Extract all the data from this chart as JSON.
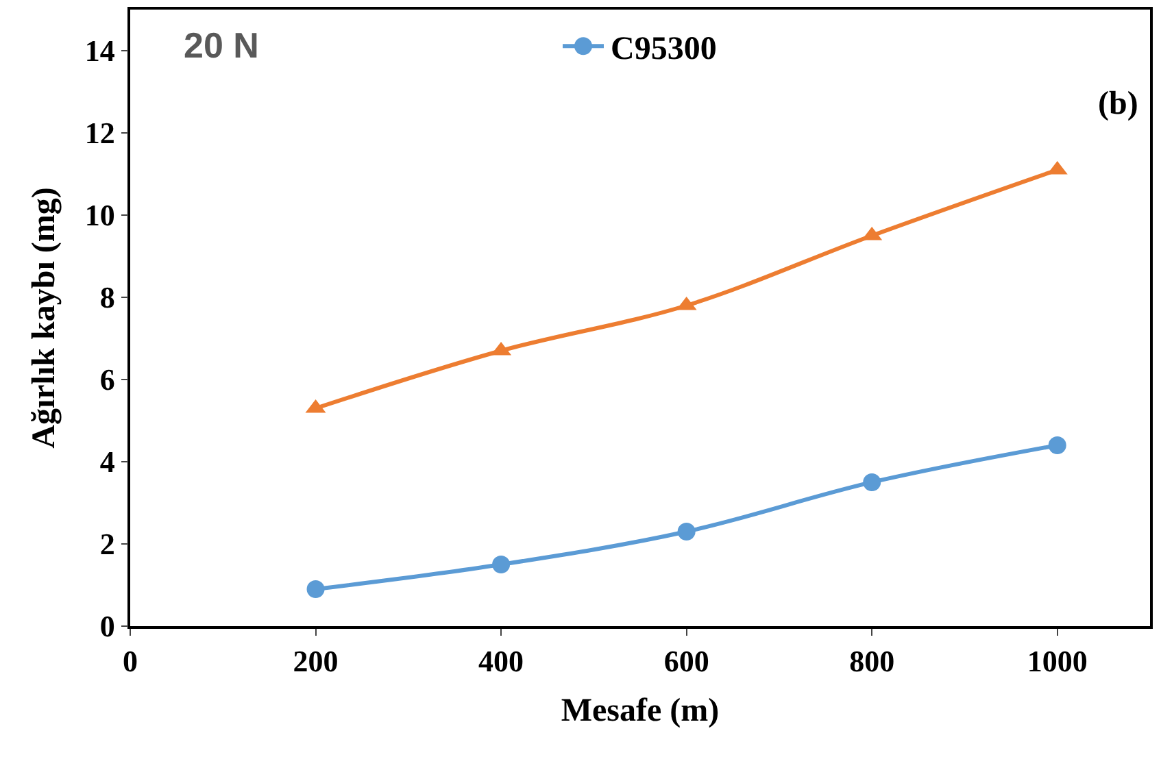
{
  "chart_data": {
    "type": "line",
    "xlabel": "Mesafe (m)",
    "ylabel": "Ağırlık kaybı (mg)",
    "x": [
      200,
      400,
      600,
      800,
      1000
    ],
    "series": [
      {
        "name": "C95300",
        "color": "#5b9bd5",
        "marker": "circle",
        "values": [
          0.9,
          1.5,
          2.3,
          3.5,
          4.4
        ]
      },
      {
        "color": "#ed7d31",
        "marker": "triangle",
        "values": [
          5.3,
          6.7,
          7.8,
          9.5,
          11.1
        ]
      }
    ],
    "xlim": [
      0,
      1100
    ],
    "xticks": [
      0,
      200,
      400,
      600,
      800,
      1000
    ],
    "ylim": [
      0,
      15
    ],
    "yticks": [
      0,
      2,
      4,
      6,
      8,
      10,
      12,
      14
    ],
    "annotations": [
      "20 N",
      "(b)"
    ],
    "legend": "top",
    "line_style": "solid"
  }
}
